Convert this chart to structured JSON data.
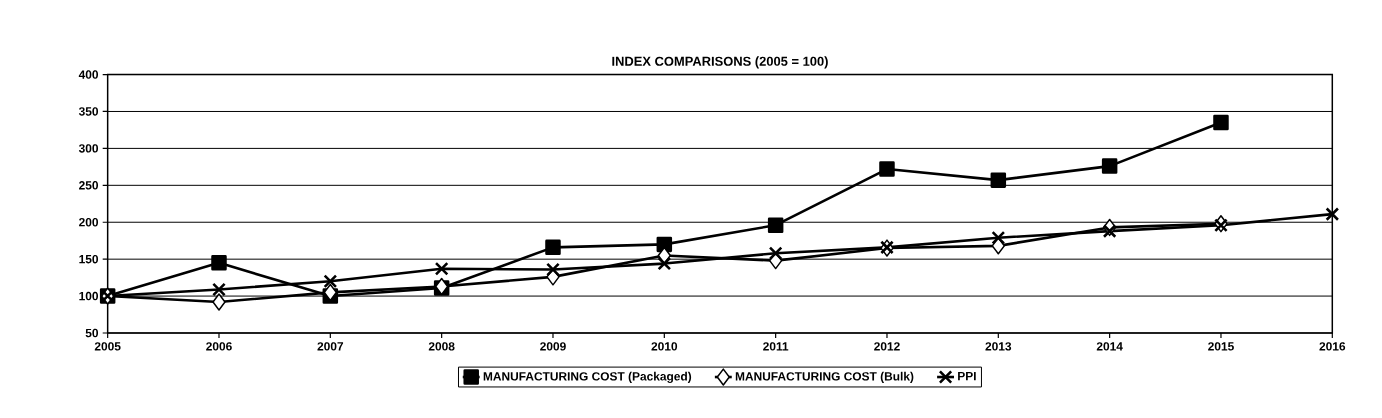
{
  "chart_data": {
    "type": "line",
    "title": "INDEX COMPARISONS (2005 = 100)",
    "x": [
      2005,
      2006,
      2007,
      2008,
      2009,
      2010,
      2011,
      2012,
      2013,
      2014,
      2015,
      2016
    ],
    "series": [
      {
        "name": "MANUFACTURING COST (Packaged)",
        "color": "#000000",
        "marker": "square",
        "values": [
          100,
          145,
          100,
          111,
          166,
          170,
          196,
          272,
          257,
          276,
          335,
          null
        ]
      },
      {
        "name": "MANUFACTURING COST (Bulk)",
        "color": "#000000",
        "marker": "diamond",
        "values": [
          100,
          92,
          105,
          113,
          126,
          155,
          148,
          165,
          168,
          193,
          198,
          null
        ]
      },
      {
        "name": "PPI",
        "color": "#000000",
        "marker": "cross",
        "values": [
          100,
          109,
          120,
          137,
          136,
          144,
          158,
          166,
          179,
          188,
          196,
          211
        ]
      }
    ],
    "xlim": [
      2005,
      2016
    ],
    "xticks": [
      2005,
      2006,
      2007,
      2008,
      2009,
      2010,
      2011,
      2012,
      2013,
      2014,
      2015,
      2016
    ],
    "ylim": [
      50,
      400
    ],
    "yticks": [
      50,
      100,
      150,
      200,
      250,
      300,
      350,
      400
    ],
    "grid": "y",
    "legend": "bottom",
    "line_style": "solid"
  }
}
